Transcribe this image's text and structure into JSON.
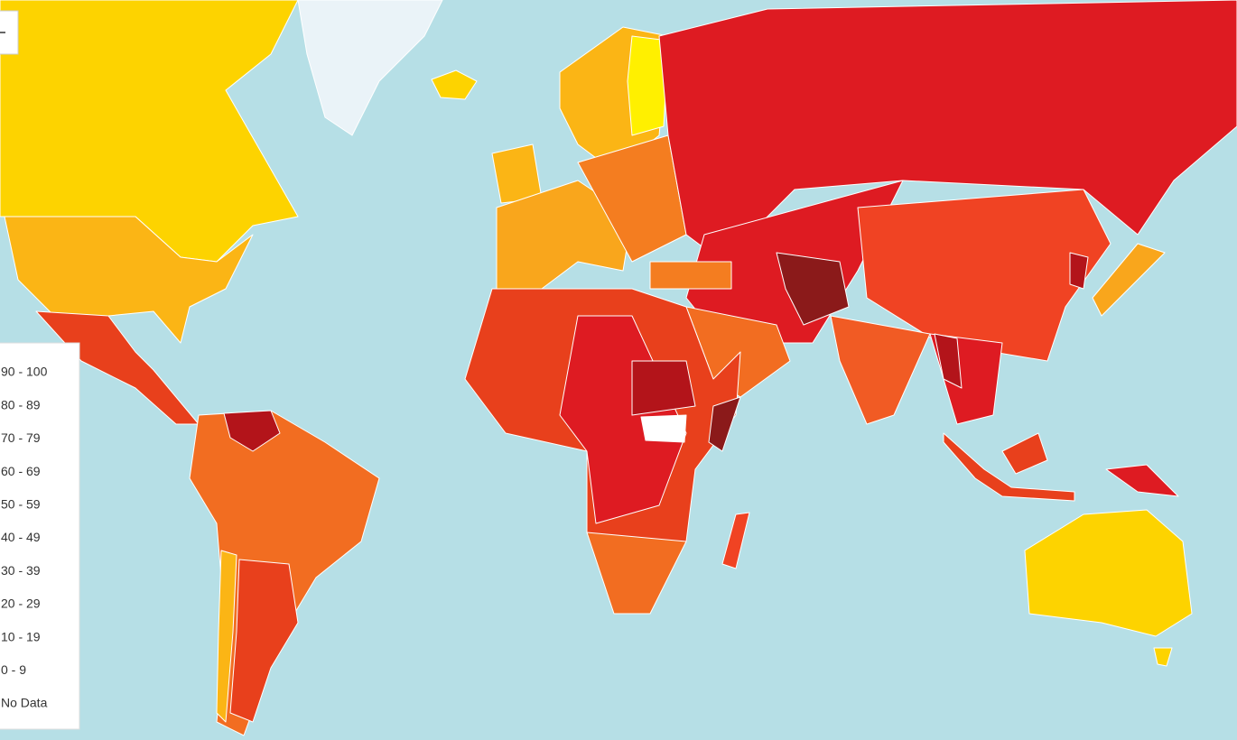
{
  "legend": {
    "items": [
      "90 - 100",
      "80 - 89",
      "70 - 79",
      "60 - 69",
      "50 - 59",
      "40 - 49",
      "30 - 39",
      "20 - 29",
      "10 - 19",
      "0 - 9",
      "No Data"
    ]
  }
}
